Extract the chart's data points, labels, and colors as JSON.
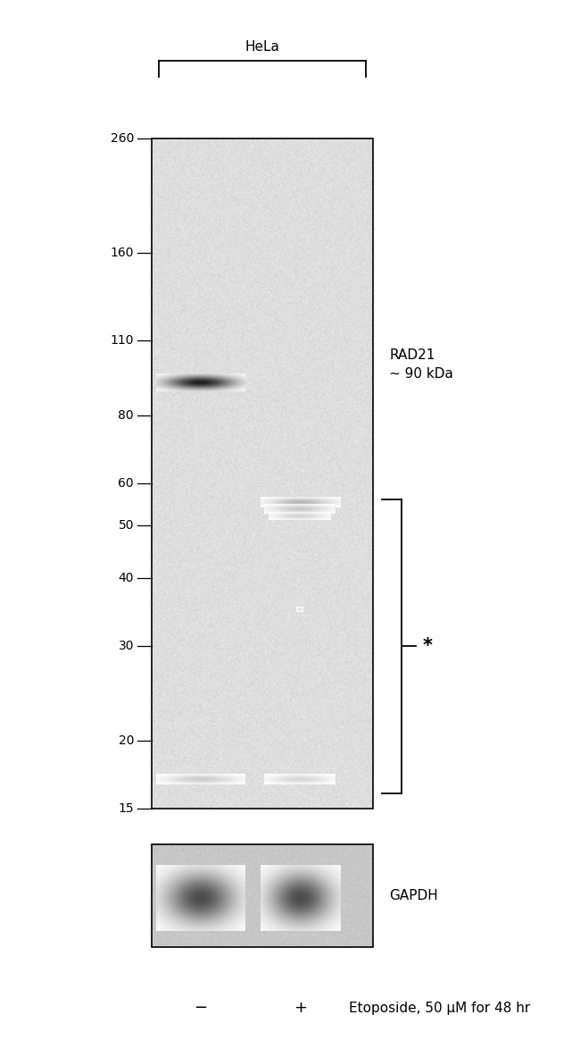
{
  "background_color": "#ffffff",
  "fig_w": 6.5,
  "fig_h": 11.64,
  "dpi": 100,
  "mw_labels": [
    260,
    160,
    110,
    80,
    60,
    50,
    40,
    30,
    20,
    15
  ],
  "hela_label": "HeLa",
  "rad21_label": "RAD21\n~ 90 kDa",
  "gapdh_text": "GAPDH",
  "etoposide_text": "Etoposide, 50 μM for 48 hr",
  "font_size_mw": 10,
  "font_size_label": 11,
  "font_size_hela": 11,
  "blot_noise_std": 0.035,
  "blot_noise_mean": 0.87,
  "gapdh_noise_mean": 0.78,
  "gapdh_noise_std": 0.025
}
